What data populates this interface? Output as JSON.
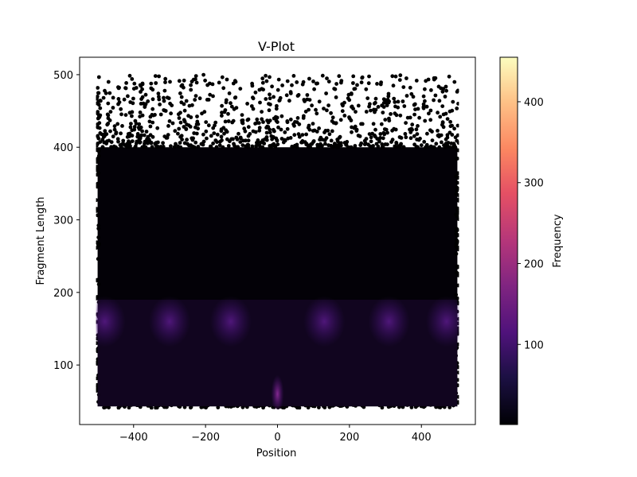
{
  "chart_data": {
    "type": "heatmap",
    "title": "V-Plot",
    "xlabel": "Position",
    "ylabel": "Fragment Length",
    "xlim": [
      -550,
      550
    ],
    "ylim": [
      18,
      524
    ],
    "x_ticks": [
      -400,
      -200,
      0,
      200,
      400
    ],
    "x_tick_labels": [
      "−400",
      "−200",
      "0",
      "200",
      "400"
    ],
    "y_ticks": [
      100,
      200,
      300,
      400,
      500
    ],
    "y_tick_labels": [
      "100",
      "200",
      "300",
      "400",
      "500"
    ],
    "data_extent": {
      "x": [
        -500,
        500
      ],
      "y": [
        43,
        500
      ]
    },
    "colorbar": {
      "label": "Frequency",
      "range": [
        1,
        455
      ],
      "ticks": [
        100,
        200,
        300,
        400
      ],
      "tick_labels": [
        "100",
        "200",
        "300",
        "400"
      ],
      "colormap": "magma"
    },
    "features": [
      {
        "name": "nucleosome band",
        "y_range": [
          130,
          190
        ],
        "approx_frequency": 60
      },
      {
        "name": "nucleosome-free region",
        "x": 0,
        "y_range": [
          45,
          100
        ],
        "approx_frequency": 120
      },
      {
        "name": "sparse long fragments",
        "y_range": [
          400,
          500
        ]
      }
    ],
    "band_centers_x": [
      -480,
      -300,
      -130,
      130,
      310,
      470
    ],
    "grid": false,
    "legend": "none"
  }
}
